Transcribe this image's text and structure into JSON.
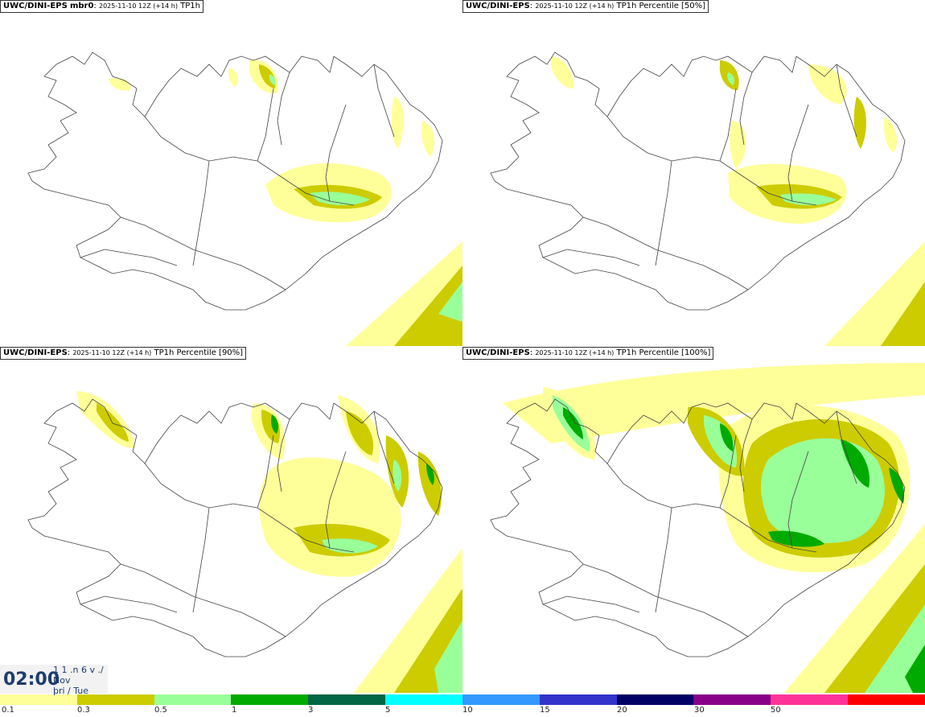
{
  "panels": [
    {
      "model": "UWC/DINI-EPS",
      "member": "mbr0",
      "run": "2025-11-10 12Z (+14 h)",
      "field": "TP1h",
      "suffix": ""
    },
    {
      "model": "UWC/DINI-EPS",
      "member": "",
      "run": "2025-11-10 12Z (+14 h)",
      "field": "TP1h Percentile",
      "suffix": "[50%]"
    },
    {
      "model": "UWC/DINI-EPS",
      "member": "",
      "run": "2025-11-10 12Z (+14 h)",
      "field": "TP1h Percentile",
      "suffix": "[90%]"
    },
    {
      "model": "UWC/DINI-EPS",
      "member": "",
      "run": "2025-11-10 12Z (+14 h)",
      "field": "TP1h Percentile",
      "suffix": "[100%]"
    }
  ],
  "clock": {
    "time": "02:00",
    "day_line": "1 1 .n 6 v ./",
    "month": "Nov",
    "weekday": "þri / Tue"
  },
  "legend": {
    "colors": [
      "#ffff99",
      "#cccc00",
      "#99ff99",
      "#00aa00",
      "#006644",
      "#00ffff",
      "#3399ff",
      "#3333cc",
      "#000066",
      "#880088",
      "#ff3399",
      "#ff0000"
    ],
    "ticks": [
      "0.1",
      "0.3",
      "0.5",
      "1",
      "3",
      "5",
      "10",
      "15",
      "20",
      "30",
      "50"
    ]
  }
}
